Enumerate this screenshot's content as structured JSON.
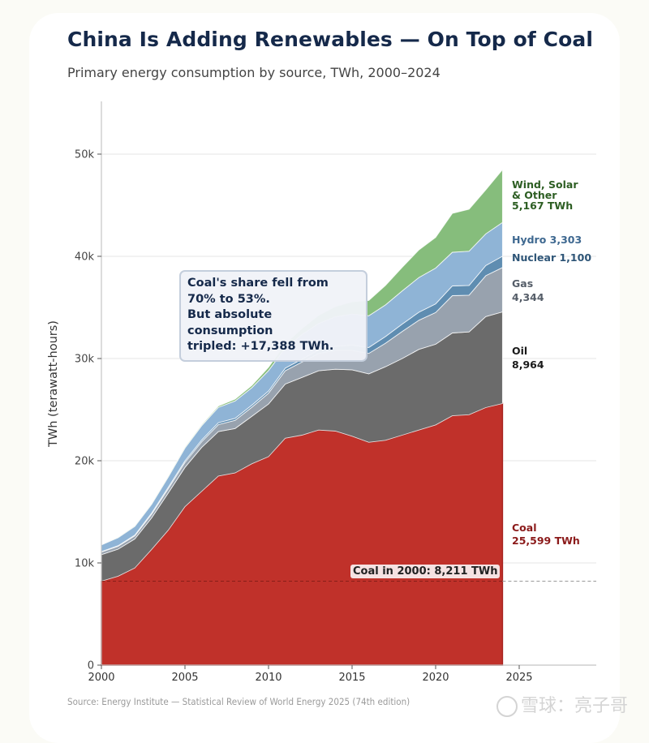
{
  "title": "China Is Adding Renewables — On Top of Coal",
  "subtitle": "Primary energy consumption by source, TWh, 2000–2024",
  "source": "Source: Energy Institute — Statistical Review of World Energy 2025 (74th edition)",
  "watermark": "雪球：亮子哥",
  "annotation": {
    "line1": "Coal's share fell from",
    "line2": "70% to 53%.",
    "line3": "But absolute consumption",
    "line4": "tripled: +17,388 TWh."
  },
  "reference_line": {
    "label": "Coal in 2000: 8,211 TWh",
    "value": 8211
  },
  "end_labels": {
    "wind_solar": [
      "Wind, Solar",
      "& Other",
      "5,167 TWh"
    ],
    "hydro": "Hydro 3,303",
    "nuclear": "Nuclear 1,100",
    "gas": [
      "Gas",
      "4,344"
    ],
    "oil": [
      "Oil",
      "8,964"
    ],
    "coal": [
      "Coal",
      "25,599 TWh"
    ]
  },
  "colors": {
    "coal": "#c0312a",
    "oil": "#6b6b6b",
    "gas": "#98a2ae",
    "nuclear": "#5f8db1",
    "hydro": "#8fb4d6",
    "wind_solar": "#86bd7c",
    "coal_label": "#8b1a1a",
    "oil_label": "#1a1a1a",
    "gas_label": "#555d68",
    "nuclear_label": "#2e5577",
    "hydro_label": "#3e6890",
    "wind_label": "#2d5e23"
  },
  "chart_data": {
    "type": "area",
    "stacked": true,
    "title": "China Is Adding Renewables — On Top of Coal",
    "subtitle": "Primary energy consumption by source, TWh, 2000–2024",
    "xlabel": "",
    "ylabel": "TWh (terawatt-hours)",
    "xlim": [
      2000,
      2029
    ],
    "ylim": [
      0,
      55000
    ],
    "xticks": [
      2000,
      2005,
      2010,
      2015,
      2020,
      2025
    ],
    "xtick_labels": [
      "2000",
      "2005",
      "2010",
      "2015",
      "2020",
      "2025"
    ],
    "yticks": [
      0,
      10000,
      20000,
      30000,
      40000,
      50000
    ],
    "ytick_labels": [
      "0",
      "10k",
      "20k",
      "30k",
      "40k",
      "50k"
    ],
    "grid": "horizontal",
    "x": [
      2000,
      2001,
      2002,
      2003,
      2004,
      2005,
      2006,
      2007,
      2008,
      2009,
      2010,
      2011,
      2012,
      2013,
      2014,
      2015,
      2016,
      2017,
      2018,
      2019,
      2020,
      2021,
      2022,
      2023,
      2024
    ],
    "series": [
      {
        "name": "Coal",
        "values": [
          8211,
          8700,
          9500,
          11300,
          13200,
          15500,
          17000,
          18500,
          18800,
          19700,
          20400,
          22200,
          22500,
          23000,
          22900,
          22400,
          21800,
          22000,
          22500,
          23000,
          23500,
          24400,
          24500,
          25200,
          25599
        ]
      },
      {
        "name": "Oil",
        "values": [
          2600,
          2650,
          2850,
          3100,
          3650,
          3850,
          4300,
          4350,
          4350,
          4650,
          5150,
          5300,
          5650,
          5800,
          6050,
          6500,
          6700,
          7200,
          7500,
          7900,
          7900,
          8100,
          8100,
          8900,
          8964
        ]
      },
      {
        "name": "Gas",
        "values": [
          250,
          280,
          300,
          350,
          400,
          480,
          560,
          680,
          800,
          880,
          1050,
          1300,
          1500,
          1700,
          1850,
          1900,
          2000,
          2300,
          2650,
          2850,
          3100,
          3650,
          3600,
          4000,
          4344
        ]
      },
      {
        "name": "Nuclear",
        "values": [
          50,
          60,
          80,
          120,
          150,
          160,
          170,
          190,
          200,
          210,
          220,
          260,
          290,
          330,
          390,
          500,
          580,
          650,
          720,
          780,
          850,
          950,
          950,
          1000,
          1100
        ]
      },
      {
        "name": "Hydro",
        "values": [
          650,
          780,
          850,
          850,
          1000,
          1250,
          1400,
          1500,
          1700,
          1700,
          2000,
          1950,
          2400,
          2600,
          2900,
          3050,
          3100,
          3100,
          3250,
          3400,
          3500,
          3300,
          3350,
          3100,
          3303
        ]
      },
      {
        "name": "Wind, Solar & Other",
        "values": [
          20,
          30,
          40,
          50,
          60,
          80,
          100,
          130,
          170,
          220,
          320,
          450,
          600,
          800,
          1000,
          1200,
          1500,
          1900,
          2300,
          2700,
          3000,
          3800,
          4100,
          4300,
          5167
        ]
      }
    ],
    "annotations": [
      "Coal's share fell from 70% to 53%. But absolute consumption tripled: +17,388 TWh.",
      "Coal in 2000: 8,211 TWh"
    ],
    "end_labels": [
      "Wind, Solar & Other 5,167 TWh",
      "Hydro 3,303",
      "Nuclear 1,100",
      "Gas 4,344",
      "Oil 8,964",
      "Coal 25,599 TWh"
    ],
    "legend": "none (direct end labels at right)"
  }
}
